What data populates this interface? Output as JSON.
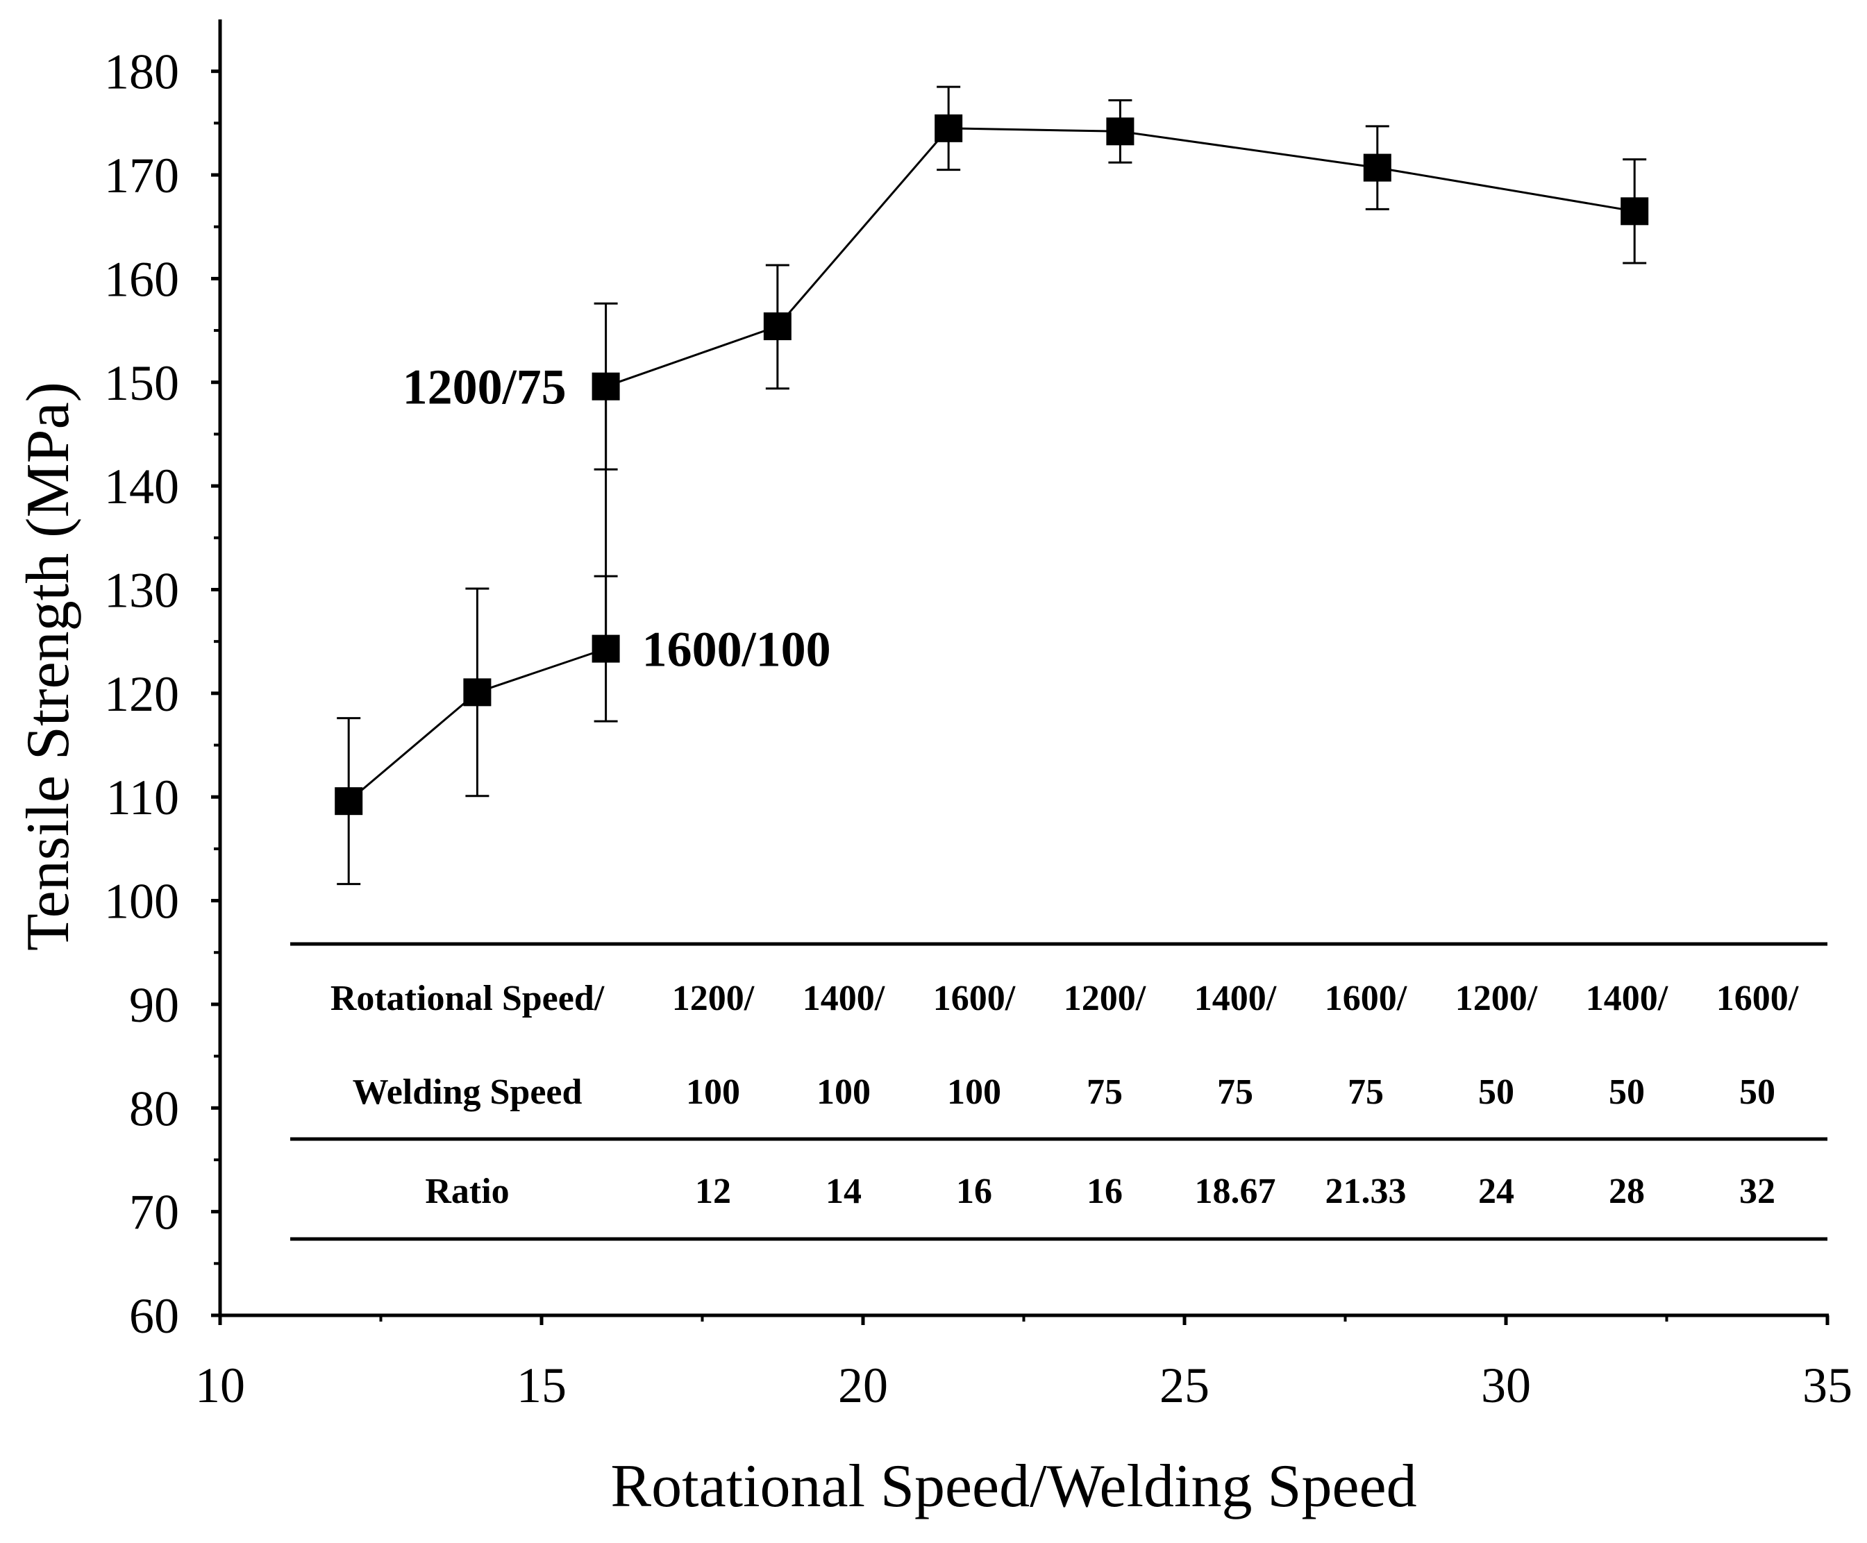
{
  "chart_data": {
    "type": "scatter",
    "title": "",
    "xlabel": "Rotational Speed/Welding Speed",
    "ylabel": "Tensile Strength (MPa)",
    "xlim": [
      10,
      35
    ],
    "ylim": [
      60,
      185
    ],
    "x_ticks": [
      10,
      15,
      20,
      25,
      30,
      35
    ],
    "x_tick_labels": [
      "10",
      "15",
      "20",
      "25",
      "30",
      "35"
    ],
    "x_minor_ticks": [
      12.5,
      17.5,
      22.5,
      27.5,
      32.5
    ],
    "y_ticks": [
      60,
      70,
      80,
      90,
      100,
      110,
      120,
      130,
      140,
      150,
      160,
      170,
      180
    ],
    "y_tick_labels": [
      "60",
      "70",
      "80",
      "90",
      "100",
      "110",
      "120",
      "130",
      "140",
      "150",
      "160",
      "170",
      "180"
    ],
    "y_minor_ticks": [
      65,
      75,
      85,
      95,
      105,
      115,
      125,
      135,
      145,
      155,
      165,
      175
    ],
    "grid": false,
    "series": [
      {
        "name": "Tensile Strength",
        "marker": "square",
        "color": "#000000",
        "points": [
          {
            "x": 12,
            "y": 109.6,
            "err_low": 101.6,
            "err_high": 117.6
          },
          {
            "x": 14,
            "y": 120.1,
            "err_low": 110.1,
            "err_high": 130.1
          },
          {
            "x": 16,
            "y": 124.3,
            "err_low": 117.3,
            "err_high": 131.3
          },
          {
            "x": 16,
            "y": 149.6,
            "err_low": 141.6,
            "err_high": 157.6
          },
          {
            "x": 18.67,
            "y": 155.4,
            "err_low": 149.4,
            "err_high": 161.3
          },
          {
            "x": 21.33,
            "y": 174.5,
            "err_low": 170.5,
            "err_high": 178.5
          },
          {
            "x": 24,
            "y": 174.2,
            "err_low": 171.2,
            "err_high": 177.2
          },
          {
            "x": 28,
            "y": 170.7,
            "err_low": 166.7,
            "err_high": 174.7
          },
          {
            "x": 32,
            "y": 166.5,
            "err_low": 161.5,
            "err_high": 171.5
          }
        ]
      }
    ],
    "annotations": [
      {
        "text": "1200/75",
        "x": 16,
        "y": 149.6,
        "side": "left"
      },
      {
        "text": "1600/100",
        "x": 16,
        "y": 124.3,
        "side": "right"
      }
    ],
    "table": {
      "header_row1_label": "Rotational Speed/",
      "header_row2_label": "Welding Speed",
      "ratio_label": "Ratio",
      "columns": [
        {
          "top": "1200/",
          "bottom": "100",
          "ratio": "12"
        },
        {
          "top": "1400/",
          "bottom": "100",
          "ratio": "14"
        },
        {
          "top": "1600/",
          "bottom": "100",
          "ratio": "16"
        },
        {
          "top": "1200/",
          "bottom": "75",
          "ratio": "16"
        },
        {
          "top": "1400/",
          "bottom": "75",
          "ratio": "18.67"
        },
        {
          "top": "1600/",
          "bottom": "75",
          "ratio": "21.33"
        },
        {
          "top": "1200/",
          "bottom": "50",
          "ratio": "24"
        },
        {
          "top": "1400/",
          "bottom": "50",
          "ratio": "28"
        },
        {
          "top": "1600/",
          "bottom": "50",
          "ratio": "32"
        }
      ]
    }
  }
}
